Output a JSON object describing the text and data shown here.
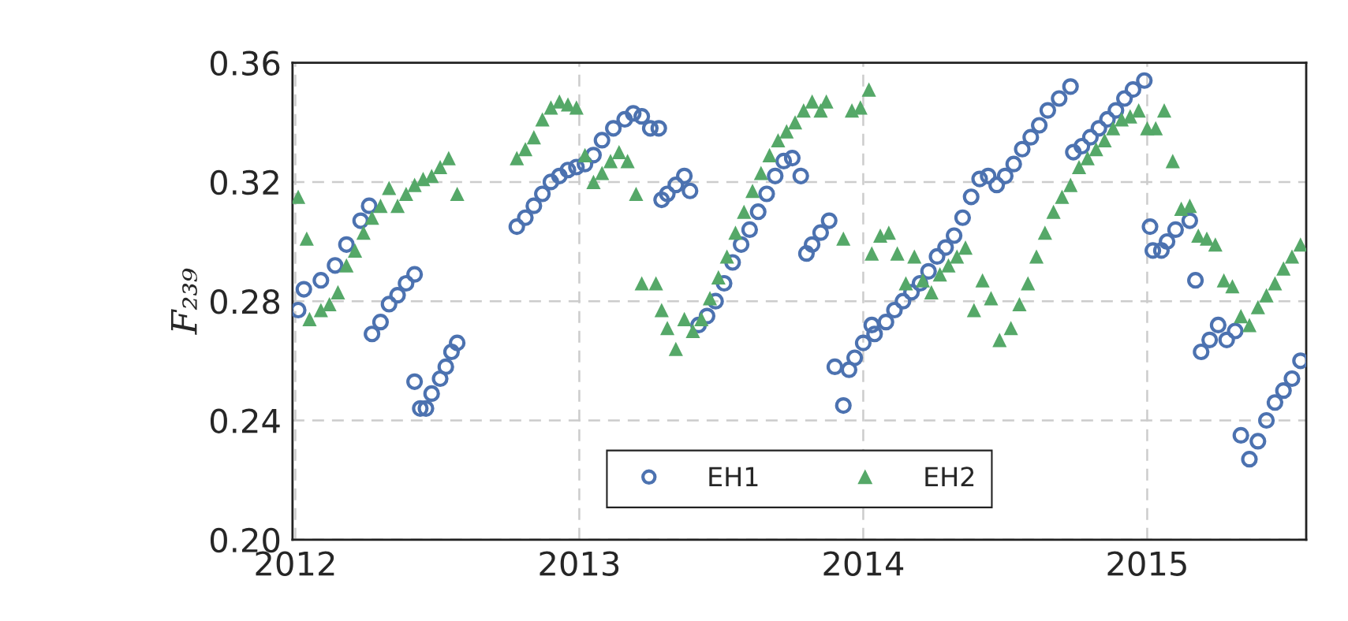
{
  "chart_data": {
    "type": "scatter",
    "ylabel": "F₂₃₉",
    "xlim": [
      2011.99,
      2015.56
    ],
    "xticks": [
      2012,
      2013,
      2014,
      2015
    ],
    "ylim": [
      0.2,
      0.36
    ],
    "yticks": [
      {
        "value": 0.2,
        "label": "0.20"
      },
      {
        "value": 0.24,
        "label": "0.24"
      },
      {
        "value": 0.28,
        "label": "0.28"
      },
      {
        "value": 0.32,
        "label": "0.32"
      },
      {
        "value": 0.36,
        "label": "0.36"
      }
    ],
    "grid": true,
    "legend": "bottom",
    "series": [
      {
        "name": "EH1",
        "color": "#4c72b0",
        "marker": "circle",
        "x": [
          2012.01,
          2012.03,
          2012.09,
          2012.14,
          2012.18,
          2012.23,
          2012.26,
          2012.27,
          2012.3,
          2012.33,
          2012.36,
          2012.39,
          2012.42,
          2012.42,
          2012.44,
          2012.46,
          2012.48,
          2012.51,
          2012.53,
          2012.55,
          2012.57,
          2012.78,
          2012.81,
          2012.84,
          2012.87,
          2012.9,
          2012.93,
          2012.96,
          2012.99,
          2013.02,
          2013.05,
          2013.08,
          2013.12,
          2013.16,
          2013.19,
          2013.22,
          2013.25,
          2013.28,
          2013.29,
          2013.31,
          2013.34,
          2013.37,
          2013.39,
          2013.42,
          2013.45,
          2013.48,
          2013.51,
          2013.54,
          2013.57,
          2013.6,
          2013.63,
          2013.66,
          2013.69,
          2013.72,
          2013.75,
          2013.78,
          2013.8,
          2013.82,
          2013.85,
          2013.88,
          2013.9,
          2013.93,
          2013.95,
          2013.97,
          2014.0,
          2014.03,
          2014.04,
          2014.08,
          2014.11,
          2014.14,
          2014.17,
          2014.2,
          2014.23,
          2014.26,
          2014.29,
          2014.32,
          2014.35,
          2014.38,
          2014.41,
          2014.44,
          2014.47,
          2014.5,
          2014.53,
          2014.56,
          2014.59,
          2014.62,
          2014.65,
          2014.69,
          2014.73,
          2014.74,
          2014.77,
          2014.8,
          2014.83,
          2014.86,
          2014.89,
          2014.92,
          2014.95,
          2014.99,
          2015.01,
          2015.02,
          2015.05,
          2015.07,
          2015.1,
          2015.15,
          2015.17,
          2015.19,
          2015.22,
          2015.25,
          2015.28,
          2015.31,
          2015.33,
          2015.36,
          2015.39,
          2015.42,
          2015.45,
          2015.48,
          2015.51,
          2015.54
        ],
        "values": [
          0.277,
          0.284,
          0.287,
          0.292,
          0.299,
          0.307,
          0.312,
          0.269,
          0.273,
          0.279,
          0.282,
          0.286,
          0.289,
          0.253,
          0.244,
          0.244,
          0.249,
          0.254,
          0.258,
          0.263,
          0.266,
          0.305,
          0.308,
          0.312,
          0.316,
          0.32,
          0.322,
          0.324,
          0.325,
          0.326,
          0.329,
          0.334,
          0.338,
          0.341,
          0.343,
          0.342,
          0.338,
          0.338,
          0.314,
          0.316,
          0.319,
          0.322,
          0.317,
          0.272,
          0.275,
          0.28,
          0.286,
          0.293,
          0.299,
          0.304,
          0.31,
          0.316,
          0.322,
          0.327,
          0.328,
          0.322,
          0.296,
          0.299,
          0.303,
          0.307,
          0.258,
          0.245,
          0.257,
          0.261,
          0.266,
          0.272,
          0.269,
          0.273,
          0.277,
          0.28,
          0.283,
          0.286,
          0.29,
          0.295,
          0.298,
          0.302,
          0.308,
          0.315,
          0.321,
          0.322,
          0.319,
          0.322,
          0.326,
          0.331,
          0.335,
          0.339,
          0.344,
          0.348,
          0.352,
          0.33,
          0.332,
          0.335,
          0.338,
          0.341,
          0.344,
          0.348,
          0.351,
          0.354,
          0.305,
          0.297,
          0.297,
          0.3,
          0.304,
          0.307,
          0.287,
          0.263,
          0.267,
          0.272,
          0.267,
          0.27,
          0.235,
          0.227,
          0.233,
          0.24,
          0.246,
          0.25,
          0.254,
          0.26
        ]
      },
      {
        "name": "EH2",
        "color": "#55a868",
        "marker": "triangle",
        "x": [
          2012.01,
          2012.04,
          2012.05,
          2012.09,
          2012.12,
          2012.15,
          2012.18,
          2012.21,
          2012.24,
          2012.27,
          2012.3,
          2012.33,
          2012.36,
          2012.39,
          2012.42,
          2012.45,
          2012.48,
          2012.51,
          2012.54,
          2012.57,
          2012.78,
          2012.81,
          2012.84,
          2012.87,
          2012.9,
          2012.93,
          2012.96,
          2012.99,
          2013.02,
          2013.05,
          2013.08,
          2013.11,
          2013.14,
          2013.17,
          2013.2,
          2013.22,
          2013.27,
          2013.29,
          2013.31,
          2013.34,
          2013.37,
          2013.4,
          2013.43,
          2013.46,
          2013.49,
          2013.52,
          2013.55,
          2013.58,
          2013.61,
          2013.64,
          2013.67,
          2013.7,
          2013.73,
          2013.76,
          2013.79,
          2013.82,
          2013.85,
          2013.87,
          2013.93,
          2013.96,
          2013.99,
          2014.02,
          2014.03,
          2014.06,
          2014.09,
          2014.12,
          2014.15,
          2014.18,
          2014.21,
          2014.24,
          2014.27,
          2014.3,
          2014.33,
          2014.36,
          2014.39,
          2014.42,
          2014.45,
          2014.48,
          2014.52,
          2014.55,
          2014.58,
          2014.61,
          2014.64,
          2014.67,
          2014.7,
          2014.73,
          2014.76,
          2014.79,
          2014.82,
          2014.85,
          2014.88,
          2014.91,
          2014.94,
          2014.97,
          2015.0,
          2015.03,
          2015.06,
          2015.09,
          2015.12,
          2015.15,
          2015.18,
          2015.21,
          2015.24,
          2015.27,
          2015.3,
          2015.33,
          2015.36,
          2015.39,
          2015.42,
          2015.45,
          2015.48,
          2015.51,
          2015.54
        ],
        "values": [
          0.315,
          0.301,
          0.274,
          0.277,
          0.279,
          0.283,
          0.292,
          0.297,
          0.303,
          0.308,
          0.312,
          0.318,
          0.312,
          0.316,
          0.319,
          0.321,
          0.322,
          0.325,
          0.328,
          0.316,
          0.328,
          0.331,
          0.335,
          0.341,
          0.345,
          0.347,
          0.346,
          0.345,
          0.329,
          0.32,
          0.323,
          0.327,
          0.33,
          0.327,
          0.316,
          0.286,
          0.286,
          0.277,
          0.271,
          0.264,
          0.274,
          0.27,
          0.274,
          0.281,
          0.288,
          0.295,
          0.303,
          0.31,
          0.317,
          0.323,
          0.329,
          0.334,
          0.337,
          0.34,
          0.344,
          0.347,
          0.344,
          0.347,
          0.301,
          0.344,
          0.345,
          0.351,
          0.296,
          0.302,
          0.303,
          0.296,
          0.286,
          0.295,
          0.287,
          0.283,
          0.289,
          0.292,
          0.295,
          0.298,
          0.277,
          0.287,
          0.281,
          0.267,
          0.271,
          0.279,
          0.286,
          0.295,
          0.303,
          0.31,
          0.315,
          0.319,
          0.325,
          0.328,
          0.331,
          0.334,
          0.338,
          0.341,
          0.342,
          0.344,
          0.338,
          0.338,
          0.344,
          0.327,
          0.311,
          0.312,
          0.302,
          0.301,
          0.299,
          0.287,
          0.285,
          0.275,
          0.272,
          0.278,
          0.282,
          0.286,
          0.291,
          0.295,
          0.299
        ]
      }
    ]
  }
}
